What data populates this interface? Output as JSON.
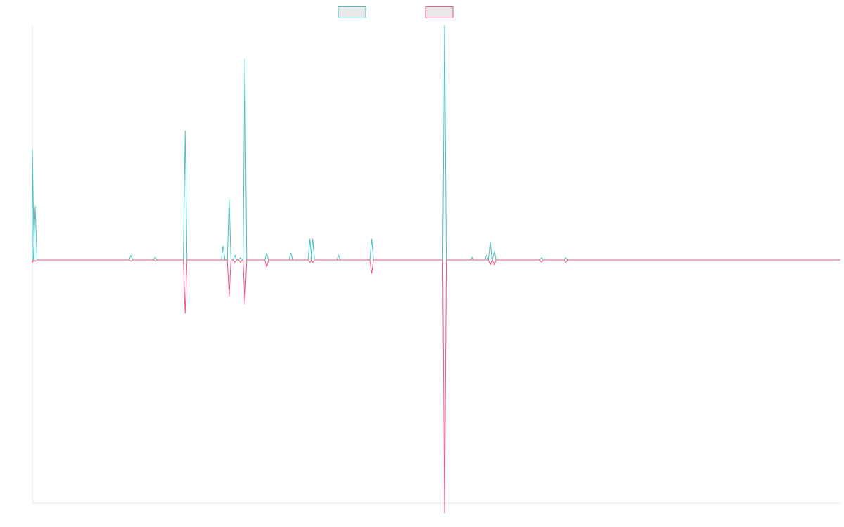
{
  "chart_data": {
    "type": "line",
    "title": "",
    "xlabel": "",
    "ylabel": "",
    "xlim": [
      0,
      100
    ],
    "ylim": [
      -1,
      1
    ],
    "grid": false,
    "legend_position": "top-center",
    "series": [
      {
        "color": "#4bbfc3",
        "orientation": "up",
        "points": [
          [
            0.0,
            0.47
          ],
          [
            0.35,
            0.23
          ],
          [
            12.2,
            0.02
          ],
          [
            15.2,
            0.012
          ],
          [
            18.9,
            0.55
          ],
          [
            23.6,
            0.06
          ],
          [
            24.35,
            0.26
          ],
          [
            25.05,
            0.02
          ],
          [
            25.75,
            0.01
          ],
          [
            26.3,
            0.86
          ],
          [
            29.0,
            0.03
          ],
          [
            32.0,
            0.03
          ],
          [
            34.35,
            0.09
          ],
          [
            34.7,
            0.09
          ],
          [
            37.9,
            0.02
          ],
          [
            42.0,
            0.09
          ],
          [
            51.0,
            1.0
          ],
          [
            54.4,
            0.012
          ],
          [
            56.2,
            0.02
          ],
          [
            56.65,
            0.077
          ],
          [
            57.15,
            0.04
          ],
          [
            63.0,
            0.01
          ],
          [
            66.0,
            0.01
          ]
        ]
      },
      {
        "color": "#f0567a",
        "orientation": "down",
        "points": [
          [
            0.0,
            0.01
          ],
          [
            0.35,
            0.005
          ],
          [
            12.2,
            0.005
          ],
          [
            15.2,
            0.005
          ],
          [
            18.9,
            0.22
          ],
          [
            24.35,
            0.15
          ],
          [
            25.05,
            0.01
          ],
          [
            25.75,
            0.01
          ],
          [
            26.3,
            0.18
          ],
          [
            29.0,
            0.03
          ],
          [
            34.35,
            0.01
          ],
          [
            34.7,
            0.01
          ],
          [
            42.0,
            0.055
          ],
          [
            51.0,
            1.04
          ],
          [
            56.65,
            0.02
          ],
          [
            57.15,
            0.02
          ],
          [
            63.0,
            0.01
          ],
          [
            66.0,
            0.01
          ]
        ]
      }
    ]
  }
}
